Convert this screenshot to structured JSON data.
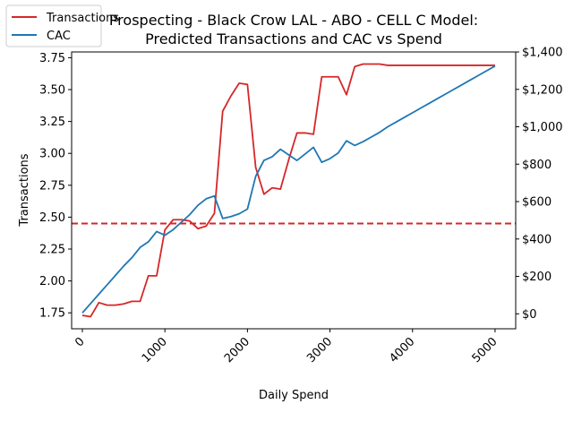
{
  "chart_data": {
    "type": "line",
    "title_line1": "Prospecting - Black Crow LAL - ABO - CELL C Model:",
    "title_line2": "Predicted Transactions and CAC vs Spend",
    "xlabel": "Daily Spend",
    "ylabel": "Transactions",
    "xlim": [
      -130,
      5250
    ],
    "ylim": [
      1.625,
      3.795
    ],
    "y2lim": [
      -80,
      1400
    ],
    "x_ticks": [
      0,
      1000,
      2000,
      3000,
      4000,
      5000
    ],
    "x_tick_labels": [
      "0",
      "1000",
      "2000",
      "3000",
      "4000",
      "5000"
    ],
    "y_ticks": [
      1.75,
      2.0,
      2.25,
      2.5,
      2.75,
      3.0,
      3.25,
      3.5,
      3.75
    ],
    "y_tick_labels": [
      "1.75",
      "2.00",
      "2.25",
      "2.50",
      "2.75",
      "3.00",
      "3.25",
      "3.50",
      "3.75"
    ],
    "y2_ticks": [
      0,
      200,
      400,
      600,
      800,
      1000,
      1200,
      1400
    ],
    "y2_tick_labels": [
      "$0",
      "$200",
      "$400",
      "$600",
      "$800",
      "$1,000",
      "$1,200",
      "$1,400"
    ],
    "legend_position": "upper-left",
    "grid": false,
    "reference_line": {
      "axis": "y",
      "value": 2.45,
      "style": "dashed",
      "color": "#d62728"
    },
    "series": [
      {
        "name": "Transactions",
        "axis": "left",
        "color": "#d62728",
        "x": [
          0,
          100,
          200,
          300,
          400,
          500,
          600,
          700,
          800,
          900,
          1000,
          1100,
          1200,
          1300,
          1400,
          1500,
          1600,
          1700,
          1800,
          1900,
          2000,
          2100,
          2200,
          2300,
          2400,
          2500,
          2600,
          2700,
          2800,
          2900,
          3000,
          3100,
          3200,
          3300,
          3400,
          3500,
          3600,
          3700,
          3800,
          3900,
          4000,
          4100,
          4200,
          4300,
          4400,
          4500,
          4600,
          4700,
          4800,
          4900,
          5000
        ],
        "values": [
          1.73,
          1.72,
          1.83,
          1.81,
          1.81,
          1.82,
          1.84,
          1.84,
          2.04,
          2.04,
          2.4,
          2.48,
          2.48,
          2.47,
          2.41,
          2.43,
          2.53,
          3.33,
          3.45,
          3.55,
          3.54,
          2.89,
          2.68,
          2.73,
          2.72,
          2.95,
          3.16,
          3.16,
          3.15,
          3.6,
          3.6,
          3.6,
          3.46,
          3.68,
          3.7,
          3.7,
          3.7,
          3.69,
          3.69,
          3.69,
          3.69,
          3.69,
          3.69,
          3.69,
          3.69,
          3.69,
          3.69,
          3.69,
          3.69,
          3.69,
          3.69
        ]
      },
      {
        "name": "CAC",
        "axis": "right",
        "color": "#1f77b4",
        "x": [
          0,
          100,
          200,
          300,
          400,
          500,
          600,
          700,
          800,
          900,
          1000,
          1100,
          1200,
          1300,
          1400,
          1500,
          1600,
          1700,
          1800,
          1900,
          2000,
          2100,
          2200,
          2300,
          2400,
          2500,
          2600,
          2700,
          2800,
          2900,
          3000,
          3100,
          3200,
          3300,
          3400,
          3500,
          3600,
          3700,
          3800,
          3900,
          4000,
          4100,
          4200,
          4300,
          4400,
          4500,
          4600,
          4700,
          4800,
          4900,
          5000
        ],
        "values": [
          5,
          55,
          105,
          155,
          205,
          255,
          300,
          355,
          385,
          440,
          420,
          450,
          490,
          530,
          580,
          615,
          630,
          510,
          520,
          535,
          560,
          735,
          820,
          840,
          880,
          850,
          820,
          855,
          890,
          810,
          830,
          860,
          925,
          900,
          920,
          945,
          970,
          1000,
          1025,
          1050,
          1075,
          1100,
          1125,
          1150,
          1175,
          1200,
          1225,
          1250,
          1275,
          1300,
          1325
        ]
      }
    ]
  }
}
